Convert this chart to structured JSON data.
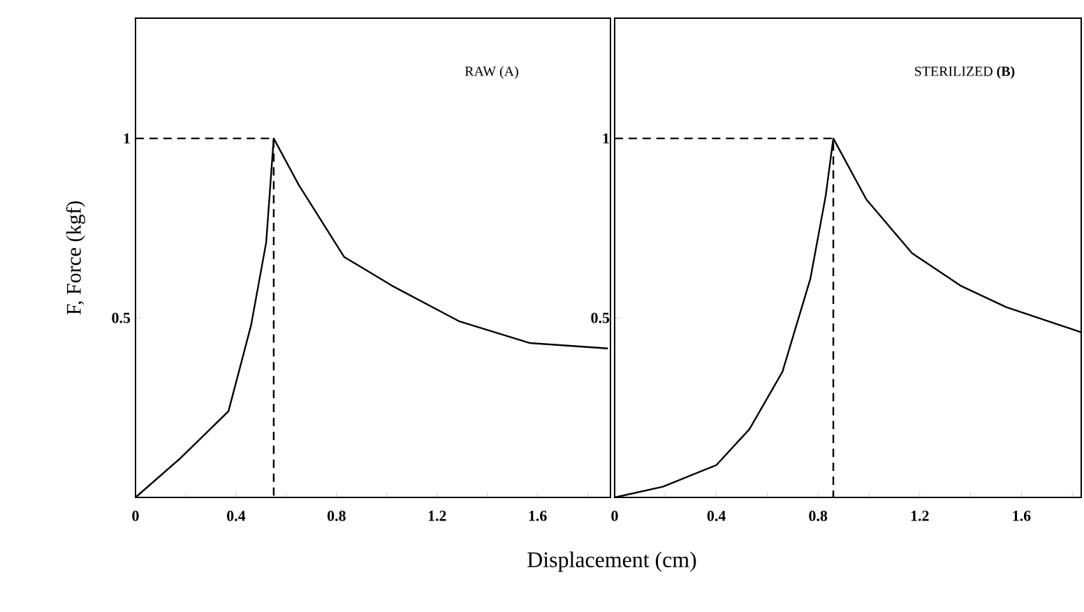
{
  "chart_data": [
    {
      "type": "line",
      "title": "RAW (A)",
      "ylabel": "F, Force (kgf)",
      "xlabel": "Displacement (cm)",
      "xlim": [
        0,
        1.89
      ],
      "ylim": [
        0,
        1.335
      ],
      "xticks": [
        0,
        {
          "value": 0.2,
          "label": null
        },
        0.4,
        {
          "value": 0.6,
          "label": null
        },
        0.8,
        {
          "value": 1.0,
          "label": null
        },
        1.2,
        {
          "value": 1.4,
          "label": null
        },
        1.6,
        {
          "value": 1.8,
          "label": null
        }
      ],
      "yticks": [
        0.5,
        1
      ],
      "series": [
        {
          "color": "#000000",
          "line_style": "solid",
          "x": [
            0,
            0.18,
            0.37,
            0.46,
            0.52,
            0.55,
            0.65,
            0.83,
            1.02,
            1.29,
            1.57,
            1.88
          ],
          "values": [
            0,
            0.11,
            0.24,
            0.48,
            0.71,
            1.0,
            0.87,
            0.67,
            0.59,
            0.49,
            0.43,
            0.415
          ]
        },
        {
          "color": "#000000",
          "line_style": "dashed",
          "x": [
            0,
            0.55,
            0.55
          ],
          "values": [
            1,
            1,
            0
          ]
        }
      ]
    },
    {
      "type": "line",
      "title": "STERILIZED **(B)**",
      "xlim": [
        0,
        1.835
      ],
      "ylim": [
        0,
        1.335
      ],
      "xticks": [
        0,
        {
          "value": 0.2,
          "label": null
        },
        0.4,
        {
          "value": 0.6,
          "label": null
        },
        0.8,
        {
          "value": 1.0,
          "label": null
        },
        1.2,
        {
          "value": 1.4,
          "label": null
        },
        1.6,
        {
          "value": 1.8,
          "label": null
        }
      ],
      "yticks": [
        0.5,
        1
      ],
      "series": [
        {
          "color": "#000000",
          "line_style": "solid",
          "x": [
            0,
            0.19,
            0.4,
            0.53,
            0.66,
            0.77,
            0.83,
            0.86,
            0.99,
            1.17,
            1.36,
            1.54,
            1.835
          ],
          "values": [
            0,
            0.03,
            0.09,
            0.19,
            0.35,
            0.61,
            0.84,
            1.0,
            0.83,
            0.68,
            0.59,
            0.53,
            0.46
          ]
        },
        {
          "color": "#000000",
          "line_style": "dashed",
          "x": [
            0,
            0.86,
            0.86
          ],
          "values": [
            1,
            1,
            0
          ]
        }
      ]
    }
  ]
}
